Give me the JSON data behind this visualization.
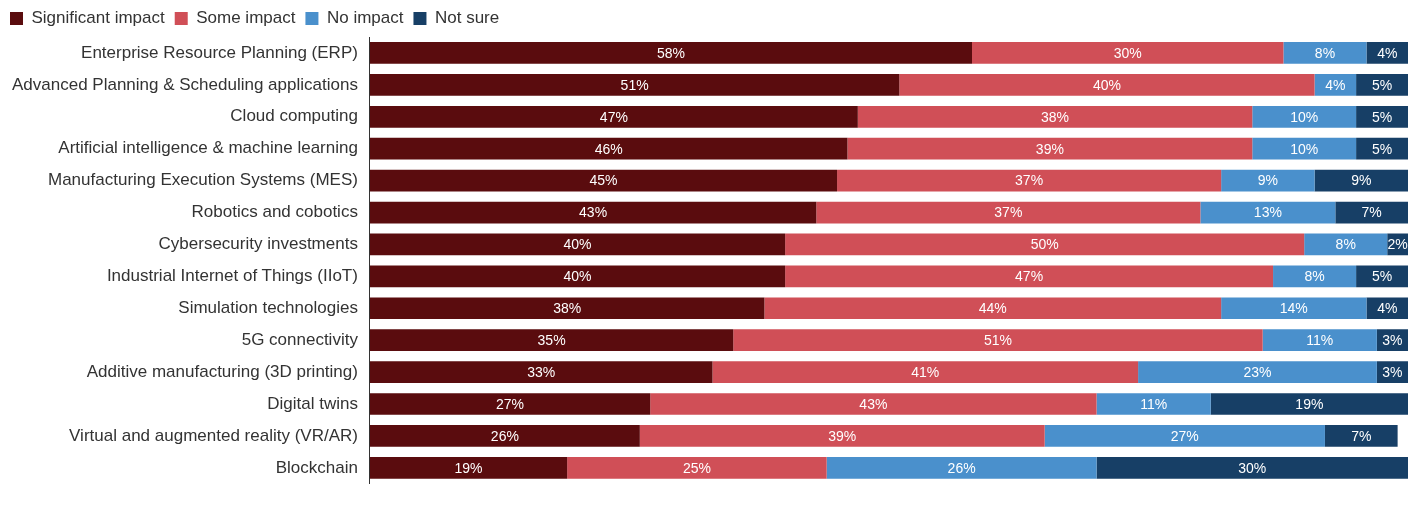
{
  "chart_data": {
    "type": "bar",
    "orientation": "horizontal",
    "stacked": true,
    "legend": "top left",
    "categories": [
      "Enterprise Resource Planning (ERP)",
      "Advanced Planning & Scheduling applications",
      "Cloud computing",
      "Artificial intelligence & machine learning",
      "Manufacturing Execution Systems (MES)",
      "Robotics and cobotics",
      "Cybersecurity investments",
      "Industrial Internet of Things (IIoT)",
      "Simulation technologies",
      "5G connectivity",
      "Additive manufacturing (3D printing)",
      "Digital twins",
      "Virtual and augmented reality (VR/AR)",
      "Blockchain"
    ],
    "series": [
      {
        "name": "Significant impact",
        "color": "#5a0c0e",
        "values": [
          58,
          51,
          47,
          46,
          45,
          43,
          40,
          40,
          38,
          35,
          33,
          27,
          26,
          19
        ],
        "value_labels": [
          "58%",
          "51%",
          "47%",
          "46%",
          "45%",
          "43%",
          "40%",
          "40%",
          "38%",
          "35%",
          "33%",
          "27%",
          "26%",
          "19%"
        ]
      },
      {
        "name": "Some impact",
        "color": "#d04f57",
        "values": [
          30,
          40,
          38,
          39,
          37,
          37,
          50,
          47,
          44,
          51,
          41,
          43,
          39,
          25
        ],
        "value_labels": [
          "30%",
          "40%",
          "38%",
          "39%",
          "37%",
          "37%",
          "50%",
          "47%",
          "44%",
          "51%",
          "41%",
          "43%",
          "39%",
          "25%"
        ]
      },
      {
        "name": "No impact",
        "color": "#4a90cc",
        "values": [
          8,
          4,
          10,
          10,
          9,
          13,
          8,
          8,
          14,
          11,
          23,
          11,
          27,
          26
        ],
        "value_labels": [
          "8%",
          "4%",
          "10%",
          "10%",
          "9%",
          "13%",
          "8%",
          "8%",
          "14%",
          "11%",
          "23%",
          "11%",
          "27%",
          "26%"
        ]
      },
      {
        "name": "Not sure",
        "color": "#173f66",
        "values": [
          4,
          5,
          5,
          5,
          9,
          7,
          2,
          5,
          4,
          3,
          3,
          19,
          7,
          30
        ],
        "value_labels": [
          "4%",
          "5%",
          "5%",
          "5%",
          "9%",
          "7%",
          "2%",
          "5%",
          "4%",
          "3%",
          "3%",
          "19%",
          "7%",
          "30%"
        ]
      }
    ]
  }
}
